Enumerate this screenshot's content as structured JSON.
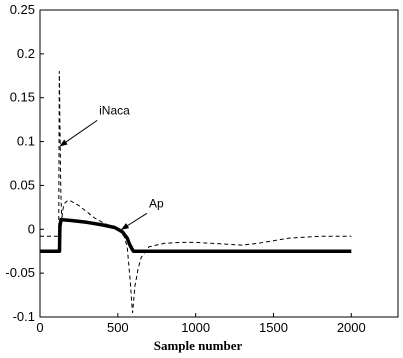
{
  "chart_data": {
    "type": "line",
    "title": "",
    "xlabel": "Sample number",
    "ylabel": "",
    "xlim": [
      0,
      2300
    ],
    "ylim": [
      -0.1,
      0.25
    ],
    "xticks": [
      0,
      500,
      1000,
      1500,
      2000
    ],
    "yticks": [
      -0.1,
      -0.05,
      0,
      0.05,
      0.1,
      0.15,
      0.2,
      0.25
    ],
    "ytick_labels": [
      "-0.1",
      "-0.05",
      "0",
      "0.05",
      "0.1",
      "0.15",
      "0.2",
      "0.25"
    ],
    "grid": false,
    "legend": "none",
    "series": [
      {
        "style": "solid-thick",
        "color": "#000000",
        "x": [
          0,
          125,
          128,
          135,
          200,
          300,
          400,
          480,
          530,
          560,
          575,
          590,
          600,
          700,
          1000,
          1300,
          1500,
          2000
        ],
        "y": [
          -0.025,
          -0.025,
          0.003,
          0.011,
          0.01,
          0.008,
          0.005,
          0.002,
          -0.003,
          -0.01,
          -0.017,
          -0.022,
          -0.025,
          -0.025,
          -0.025,
          -0.025,
          -0.025,
          -0.025
        ]
      },
      {
        "style": "dashed",
        "color": "#000000",
        "x": [
          0,
          120,
          124,
          126,
          128,
          130,
          133,
          136,
          140,
          145,
          150,
          160,
          180,
          200,
          250,
          300,
          350,
          400,
          450,
          500,
          540,
          560,
          580,
          590,
          595,
          600,
          610,
          630,
          650,
          700,
          800,
          900,
          1000,
          1200,
          1300,
          1400,
          1500,
          1600,
          1800,
          2000
        ],
        "y": [
          -0.008,
          -0.008,
          0.18,
          0.16,
          0.12,
          0.1,
          0.05,
          0.03,
          0.01,
          0.02,
          0.025,
          0.03,
          0.033,
          0.032,
          0.027,
          0.02,
          0.013,
          0.008,
          0.004,
          0.0,
          -0.008,
          -0.02,
          -0.06,
          -0.085,
          -0.095,
          -0.085,
          -0.065,
          -0.045,
          -0.032,
          -0.02,
          -0.016,
          -0.015,
          -0.015,
          -0.017,
          -0.018,
          -0.016,
          -0.013,
          -0.01,
          -0.008,
          -0.008
        ]
      }
    ],
    "annotations": [
      {
        "text": "iNaca",
        "text_at": [
          380,
          0.131
        ],
        "arrow_to": [
          130,
          0.095
        ]
      },
      {
        "text": "Ap",
        "text_at": [
          700,
          0.025
        ],
        "arrow_to": [
          525,
          0.0
        ]
      }
    ]
  }
}
